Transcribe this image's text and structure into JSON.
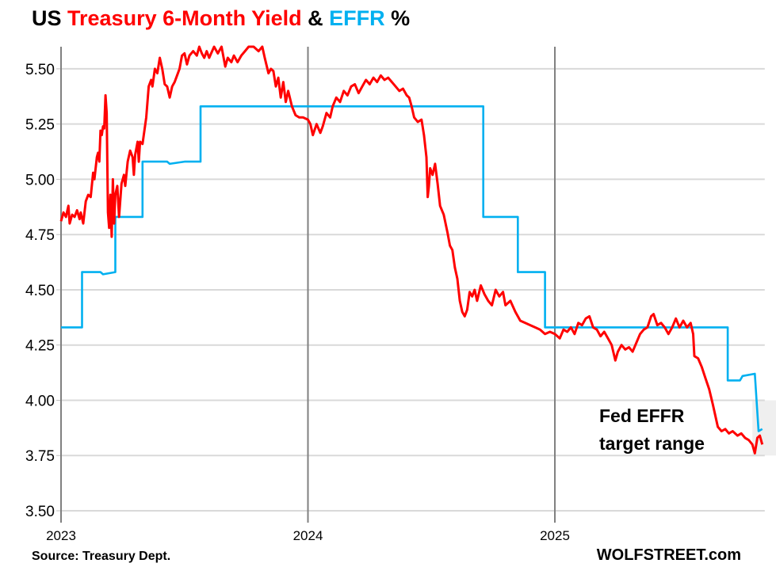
{
  "title_parts": [
    {
      "text": "US ",
      "color": "#000000"
    },
    {
      "text": "Treasury 6-Month Yield",
      "color": "#ff0000"
    },
    {
      "text": " & ",
      "color": "#000000"
    },
    {
      "text": "EFFR",
      "color": "#00b0f0"
    },
    {
      "text": " %",
      "color": "#000000"
    }
  ],
  "source": "Source: Treasury Dept.",
  "brand": "WOLFSTREET.com",
  "chart_data": {
    "type": "line",
    "title": "US Treasury 6-Month Yield & EFFR %",
    "xlabel": "",
    "ylabel": "",
    "xlim": [
      2023,
      2025.85
    ],
    "ylim": [
      3.5,
      5.6
    ],
    "x_ticks": [
      {
        "value": 2023,
        "label": "2023"
      },
      {
        "value": 2024,
        "label": "2024"
      },
      {
        "value": 2025,
        "label": "2025"
      }
    ],
    "y_ticks": [
      {
        "value": 3.5,
        "label": "3.50"
      },
      {
        "value": 3.75,
        "label": "3.75"
      },
      {
        "value": 4.0,
        "label": "4.00"
      },
      {
        "value": 4.25,
        "label": "4.25"
      },
      {
        "value": 4.5,
        "label": "4.50"
      },
      {
        "value": 4.75,
        "label": "4.75"
      },
      {
        "value": 5.0,
        "label": "5.00"
      },
      {
        "value": 5.25,
        "label": "5.25"
      },
      {
        "value": 5.5,
        "label": "5.50"
      }
    ],
    "grid": "horizontal",
    "annotation": {
      "lines": [
        "Fed EFFR",
        "target range"
      ],
      "range": [
        3.75,
        4.0
      ],
      "x_start": 2025.8
    },
    "series": [
      {
        "name": "Treasury 6-Month Yield",
        "color": "#ff0000",
        "points": [
          [
            2023.0,
            4.81
          ],
          [
            2023.01,
            4.85
          ],
          [
            2023.02,
            4.83
          ],
          [
            2023.03,
            4.88
          ],
          [
            2023.035,
            4.8
          ],
          [
            2023.045,
            4.84
          ],
          [
            2023.055,
            4.83
          ],
          [
            2023.065,
            4.86
          ],
          [
            2023.075,
            4.82
          ],
          [
            2023.08,
            4.85
          ],
          [
            2023.09,
            4.8
          ],
          [
            2023.1,
            4.9
          ],
          [
            2023.11,
            4.93
          ],
          [
            2023.12,
            4.92
          ],
          [
            2023.13,
            5.03
          ],
          [
            2023.135,
            5.0
          ],
          [
            2023.145,
            5.1
          ],
          [
            2023.15,
            5.12
          ],
          [
            2023.155,
            5.08
          ],
          [
            2023.16,
            5.22
          ],
          [
            2023.165,
            5.2
          ],
          [
            2023.17,
            5.24
          ],
          [
            2023.175,
            5.23
          ],
          [
            2023.18,
            5.38
          ],
          [
            2023.185,
            5.3
          ],
          [
            2023.19,
            4.85
          ],
          [
            2023.195,
            4.78
          ],
          [
            2023.2,
            4.93
          ],
          [
            2023.205,
            4.74
          ],
          [
            2023.21,
            5.0
          ],
          [
            2023.215,
            4.8
          ],
          [
            2023.22,
            4.93
          ],
          [
            2023.228,
            4.97
          ],
          [
            2023.235,
            4.83
          ],
          [
            2023.245,
            4.98
          ],
          [
            2023.255,
            5.02
          ],
          [
            2023.26,
            4.97
          ],
          [
            2023.27,
            5.08
          ],
          [
            2023.28,
            5.13
          ],
          [
            2023.29,
            5.1
          ],
          [
            2023.295,
            5.02
          ],
          [
            2023.3,
            5.11
          ],
          [
            2023.31,
            5.17
          ],
          [
            2023.315,
            5.08
          ],
          [
            2023.32,
            5.17
          ],
          [
            2023.33,
            5.16
          ],
          [
            2023.345,
            5.28
          ],
          [
            2023.355,
            5.42
          ],
          [
            2023.365,
            5.45
          ],
          [
            2023.37,
            5.42
          ],
          [
            2023.38,
            5.5
          ],
          [
            2023.39,
            5.48
          ],
          [
            2023.4,
            5.55
          ],
          [
            2023.41,
            5.5
          ],
          [
            2023.42,
            5.43
          ],
          [
            2023.43,
            5.42
          ],
          [
            2023.44,
            5.37
          ],
          [
            2023.45,
            5.42
          ],
          [
            2023.46,
            5.44
          ],
          [
            2023.47,
            5.47
          ],
          [
            2023.48,
            5.5
          ],
          [
            2023.49,
            5.56
          ],
          [
            2023.5,
            5.57
          ],
          [
            2023.51,
            5.52
          ],
          [
            2023.52,
            5.56
          ],
          [
            2023.535,
            5.58
          ],
          [
            2023.55,
            5.56
          ],
          [
            2023.56,
            5.6
          ],
          [
            2023.57,
            5.57
          ],
          [
            2023.58,
            5.55
          ],
          [
            2023.59,
            5.58
          ],
          [
            2023.6,
            5.55
          ],
          [
            2023.62,
            5.6
          ],
          [
            2023.635,
            5.57
          ],
          [
            2023.65,
            5.6
          ],
          [
            2023.665,
            5.51
          ],
          [
            2023.675,
            5.55
          ],
          [
            2023.69,
            5.53
          ],
          [
            2023.7,
            5.56
          ],
          [
            2023.715,
            5.53
          ],
          [
            2023.73,
            5.56
          ],
          [
            2023.745,
            5.58
          ],
          [
            2023.76,
            5.6
          ],
          [
            2023.78,
            5.6
          ],
          [
            2023.8,
            5.58
          ],
          [
            2023.815,
            5.6
          ],
          [
            2023.825,
            5.55
          ],
          [
            2023.84,
            5.48
          ],
          [
            2023.85,
            5.5
          ],
          [
            2023.86,
            5.49
          ],
          [
            2023.87,
            5.42
          ],
          [
            2023.88,
            5.46
          ],
          [
            2023.89,
            5.37
          ],
          [
            2023.9,
            5.44
          ],
          [
            2023.91,
            5.35
          ],
          [
            2023.92,
            5.4
          ],
          [
            2023.935,
            5.33
          ],
          [
            2023.95,
            5.29
          ],
          [
            2023.965,
            5.28
          ],
          [
            2023.98,
            5.28
          ],
          [
            2024.0,
            5.27
          ],
          [
            2024.01,
            5.25
          ],
          [
            2024.02,
            5.2
          ],
          [
            2024.035,
            5.25
          ],
          [
            2024.05,
            5.21
          ],
          [
            2024.06,
            5.24
          ],
          [
            2024.075,
            5.3
          ],
          [
            2024.09,
            5.28
          ],
          [
            2024.1,
            5.33
          ],
          [
            2024.115,
            5.37
          ],
          [
            2024.13,
            5.35
          ],
          [
            2024.145,
            5.4
          ],
          [
            2024.16,
            5.38
          ],
          [
            2024.175,
            5.42
          ],
          [
            2024.19,
            5.43
          ],
          [
            2024.205,
            5.39
          ],
          [
            2024.22,
            5.42
          ],
          [
            2024.235,
            5.45
          ],
          [
            2024.25,
            5.43
          ],
          [
            2024.265,
            5.46
          ],
          [
            2024.28,
            5.44
          ],
          [
            2024.295,
            5.47
          ],
          [
            2024.31,
            5.45
          ],
          [
            2024.325,
            5.46
          ],
          [
            2024.34,
            5.44
          ],
          [
            2024.355,
            5.42
          ],
          [
            2024.37,
            5.4
          ],
          [
            2024.385,
            5.41
          ],
          [
            2024.4,
            5.38
          ],
          [
            2024.41,
            5.37
          ],
          [
            2024.42,
            5.33
          ],
          [
            2024.43,
            5.28
          ],
          [
            2024.445,
            5.26
          ],
          [
            2024.46,
            5.27
          ],
          [
            2024.47,
            5.2
          ],
          [
            2024.48,
            5.1
          ],
          [
            2024.485,
            4.92
          ],
          [
            2024.49,
            4.97
          ],
          [
            2024.495,
            5.05
          ],
          [
            2024.505,
            5.02
          ],
          [
            2024.515,
            5.07
          ],
          [
            2024.525,
            4.98
          ],
          [
            2024.535,
            4.88
          ],
          [
            2024.55,
            4.84
          ],
          [
            2024.565,
            4.76
          ],
          [
            2024.575,
            4.7
          ],
          [
            2024.585,
            4.68
          ],
          [
            2024.595,
            4.6
          ],
          [
            2024.605,
            4.55
          ],
          [
            2024.615,
            4.45
          ],
          [
            2024.625,
            4.4
          ],
          [
            2024.635,
            4.38
          ],
          [
            2024.645,
            4.41
          ],
          [
            2024.655,
            4.49
          ],
          [
            2024.665,
            4.47
          ],
          [
            2024.675,
            4.5
          ],
          [
            2024.685,
            4.45
          ],
          [
            2024.7,
            4.52
          ],
          [
            2024.715,
            4.48
          ],
          [
            2024.73,
            4.45
          ],
          [
            2024.745,
            4.43
          ],
          [
            2024.76,
            4.5
          ],
          [
            2024.775,
            4.47
          ],
          [
            2024.79,
            4.49
          ],
          [
            2024.8,
            4.43
          ],
          [
            2024.82,
            4.45
          ],
          [
            2024.84,
            4.4
          ],
          [
            2024.86,
            4.36
          ],
          [
            2024.88,
            4.35
          ],
          [
            2024.9,
            4.34
          ],
          [
            2024.92,
            4.33
          ],
          [
            2024.94,
            4.32
          ],
          [
            2024.96,
            4.3
          ],
          [
            2024.98,
            4.31
          ],
          [
            2025.0,
            4.3
          ],
          [
            2025.02,
            4.28
          ],
          [
            2025.035,
            4.32
          ],
          [
            2025.05,
            4.31
          ],
          [
            2025.065,
            4.33
          ],
          [
            2025.08,
            4.3
          ],
          [
            2025.095,
            4.35
          ],
          [
            2025.11,
            4.34
          ],
          [
            2025.125,
            4.37
          ],
          [
            2025.14,
            4.38
          ],
          [
            2025.155,
            4.33
          ],
          [
            2025.17,
            4.32
          ],
          [
            2025.185,
            4.29
          ],
          [
            2025.2,
            4.31
          ],
          [
            2025.215,
            4.28
          ],
          [
            2025.23,
            4.25
          ],
          [
            2025.245,
            4.18
          ],
          [
            2025.255,
            4.22
          ],
          [
            2025.27,
            4.25
          ],
          [
            2025.285,
            4.23
          ],
          [
            2025.3,
            4.24
          ],
          [
            2025.315,
            4.22
          ],
          [
            2025.33,
            4.26
          ],
          [
            2025.345,
            4.3
          ],
          [
            2025.36,
            4.32
          ],
          [
            2025.375,
            4.33
          ],
          [
            2025.39,
            4.38
          ],
          [
            2025.4,
            4.39
          ],
          [
            2025.415,
            4.34
          ],
          [
            2025.43,
            4.35
          ],
          [
            2025.445,
            4.33
          ],
          [
            2025.46,
            4.3
          ],
          [
            2025.475,
            4.33
          ],
          [
            2025.49,
            4.37
          ],
          [
            2025.505,
            4.33
          ],
          [
            2025.52,
            4.36
          ],
          [
            2025.535,
            4.33
          ],
          [
            2025.55,
            4.35
          ],
          [
            2025.56,
            4.3
          ],
          [
            2025.565,
            4.2
          ],
          [
            2025.58,
            4.19
          ],
          [
            2025.595,
            4.15
          ],
          [
            2025.61,
            4.1
          ],
          [
            2025.625,
            4.05
          ],
          [
            2025.64,
            3.98
          ],
          [
            2025.66,
            3.88
          ],
          [
            2025.675,
            3.86
          ],
          [
            2025.69,
            3.87
          ],
          [
            2025.705,
            3.85
          ],
          [
            2025.72,
            3.86
          ],
          [
            2025.74,
            3.84
          ],
          [
            2025.755,
            3.85
          ],
          [
            2025.77,
            3.83
          ],
          [
            2025.785,
            3.82
          ],
          [
            2025.8,
            3.8
          ],
          [
            2025.81,
            3.76
          ],
          [
            2025.82,
            3.83
          ],
          [
            2025.83,
            3.84
          ],
          [
            2025.84,
            3.8
          ]
        ]
      },
      {
        "name": "EFFR",
        "color": "#00b0f0",
        "points": [
          [
            2023.0,
            4.33
          ],
          [
            2023.085,
            4.33
          ],
          [
            2023.085,
            4.58
          ],
          [
            2023.16,
            4.58
          ],
          [
            2023.17,
            4.57
          ],
          [
            2023.22,
            4.58
          ],
          [
            2023.22,
            4.83
          ],
          [
            2023.33,
            4.83
          ],
          [
            2023.33,
            5.08
          ],
          [
            2023.43,
            5.08
          ],
          [
            2023.44,
            5.07
          ],
          [
            2023.5,
            5.08
          ],
          [
            2023.565,
            5.08
          ],
          [
            2023.565,
            5.33
          ],
          [
            2024.71,
            5.33
          ],
          [
            2024.71,
            4.83
          ],
          [
            2024.85,
            4.83
          ],
          [
            2024.85,
            4.58
          ],
          [
            2024.96,
            4.58
          ],
          [
            2024.96,
            4.33
          ],
          [
            2025.7,
            4.33
          ],
          [
            2025.7,
            4.09
          ],
          [
            2025.75,
            4.09
          ],
          [
            2025.76,
            4.11
          ],
          [
            2025.81,
            4.12
          ],
          [
            2025.825,
            3.86
          ],
          [
            2025.84,
            3.87
          ]
        ]
      }
    ]
  }
}
